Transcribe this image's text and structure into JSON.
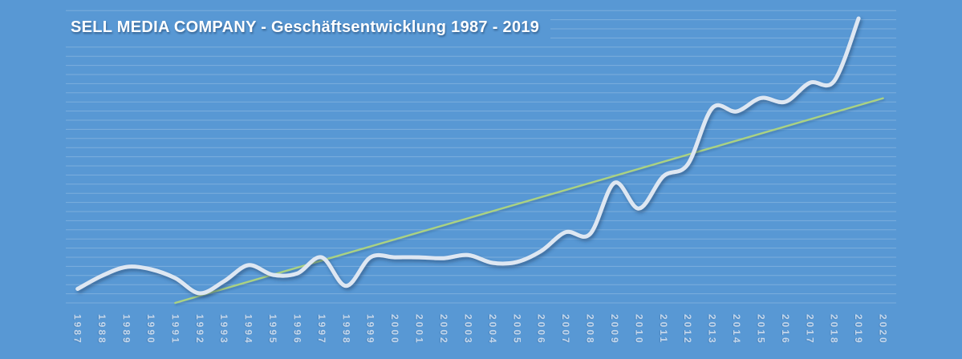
{
  "chart_data": {
    "type": "line",
    "title": "SELL MEDIA COMPANY - Geschäftsentwicklung 1987 - 2019",
    "xlabel": "",
    "ylabel": "",
    "ylim": [
      0,
      100
    ],
    "value_scale": "relative 0-100 (no y-axis value labels are shown in the chart)",
    "grid": "horizontal",
    "legend": "none",
    "x_tick_labels_rotated": true,
    "categories": [
      "1987",
      "1988",
      "1989",
      "1990",
      "1991",
      "1992",
      "1993",
      "1994",
      "1995",
      "1996",
      "1997",
      "1998",
      "1999",
      "2000",
      "2001",
      "2002",
      "2003",
      "2004",
      "2005",
      "2006",
      "2007",
      "2008",
      "2009",
      "2010",
      "2011",
      "2012",
      "2013",
      "2014",
      "2015",
      "2016",
      "2017",
      "2018",
      "2019",
      "2020"
    ],
    "series": [
      {
        "name": "business-development-line",
        "type": "smooth-line",
        "color": "#DEE7F2",
        "x_start": "1987",
        "x_end": "2019",
        "values": [
          4.8,
          9.3,
          12.3,
          11.5,
          8.5,
          3.3,
          7.4,
          12.9,
          9.6,
          10.1,
          15.6,
          5.8,
          15.6,
          15.6,
          15.6,
          15.3,
          16.4,
          13.7,
          14,
          17.8,
          24.2,
          23.6,
          41.1,
          32.3,
          43.3,
          47.4,
          66.6,
          65.5,
          70.1,
          68.8,
          75.3,
          75.9,
          97.3
        ]
      },
      {
        "name": "trend-line",
        "type": "straight-line",
        "color": "#AAD282",
        "x": [
          "1991",
          "2020"
        ],
        "values": [
          0,
          70
        ]
      }
    ]
  },
  "colors": {
    "background": "#5898D4",
    "gridline": "rgba(255,255,255,0.22)",
    "title": "#FFFFFF",
    "axis_labels": "#C6D8EC",
    "main_line": "#DEE7F2",
    "main_line_shadow": "#1E3C64",
    "trend_line": "#AAD282"
  }
}
